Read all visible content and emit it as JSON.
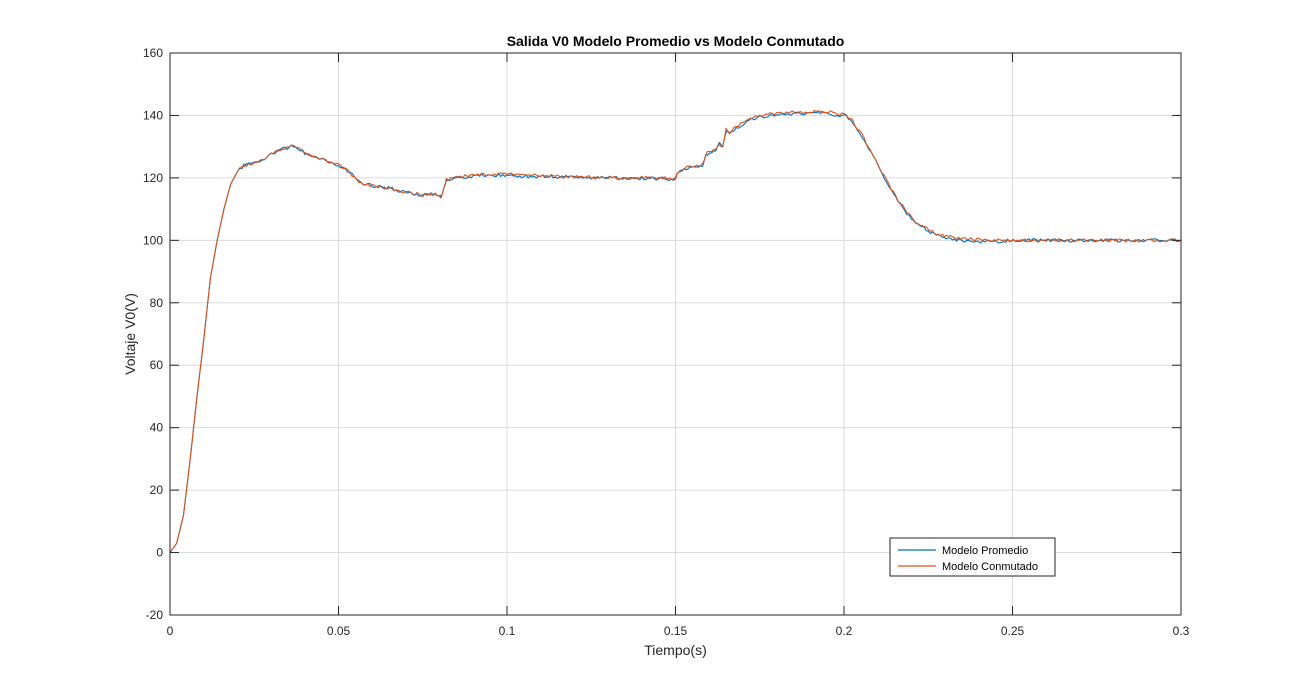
{
  "chart_data": {
    "type": "line",
    "title": "Salida V0 Modelo Promedio vs Modelo Conmutado",
    "xlabel": "Tiempo(s)",
    "ylabel": "Voltaje V0(V)",
    "xlim": [
      0,
      0.3
    ],
    "ylim": [
      -20,
      160
    ],
    "xticks": [
      0,
      0.05,
      0.1,
      0.15,
      0.2,
      0.25,
      0.3
    ],
    "xtick_labels": [
      "0",
      "0.05",
      "0.1",
      "0.15",
      "0.2",
      "0.25",
      "0.3"
    ],
    "yticks": [
      -20,
      0,
      20,
      40,
      60,
      80,
      100,
      120,
      140,
      160
    ],
    "ytick_labels": [
      "-20",
      "0",
      "20",
      "40",
      "60",
      "80",
      "100",
      "120",
      "140",
      "160"
    ],
    "grid": true,
    "legend_position": "bottom-right",
    "series": [
      {
        "name": "Modelo Promedio",
        "color": "#0072BD",
        "x": [
          0,
          0.002,
          0.004,
          0.006,
          0.008,
          0.01,
          0.012,
          0.014,
          0.016,
          0.018,
          0.02,
          0.022,
          0.024,
          0.026,
          0.028,
          0.03,
          0.032,
          0.034,
          0.036,
          0.038,
          0.04,
          0.042,
          0.045,
          0.048,
          0.05,
          0.052,
          0.054,
          0.056,
          0.058,
          0.06,
          0.063,
          0.066,
          0.069,
          0.072,
          0.075,
          0.078,
          0.08,
          0.0805,
          0.0815,
          0.082,
          0.085,
          0.09,
          0.095,
          0.1,
          0.105,
          0.11,
          0.115,
          0.12,
          0.125,
          0.13,
          0.135,
          0.14,
          0.145,
          0.15,
          0.1505,
          0.152,
          0.155,
          0.158,
          0.159,
          0.16,
          0.162,
          0.163,
          0.164,
          0.165,
          0.166,
          0.168,
          0.17,
          0.172,
          0.175,
          0.178,
          0.18,
          0.183,
          0.186,
          0.19,
          0.193,
          0.196,
          0.198,
          0.2,
          0.202,
          0.204,
          0.206,
          0.208,
          0.21,
          0.212,
          0.214,
          0.216,
          0.218,
          0.22,
          0.222,
          0.225,
          0.228,
          0.231,
          0.234,
          0.237,
          0.24,
          0.244,
          0.248,
          0.252,
          0.256,
          0.26,
          0.265,
          0.27,
          0.275,
          0.28,
          0.285,
          0.29,
          0.295,
          0.3
        ],
        "y": [
          0,
          3,
          12,
          30,
          50,
          68,
          88,
          100,
          110,
          118,
          122,
          124,
          124.5,
          125,
          126,
          127.5,
          128.5,
          129.5,
          130,
          129.5,
          128,
          127,
          126,
          124.5,
          124,
          123,
          121,
          119,
          118,
          117.5,
          117,
          116.5,
          115.5,
          115,
          114.5,
          114.8,
          114.5,
          113.5,
          118,
          119,
          120,
          120.5,
          121,
          121,
          120.5,
          120.5,
          120.3,
          120.2,
          120,
          120,
          119.8,
          119.8,
          119.8,
          119.7,
          121,
          122.5,
          123.5,
          124,
          127,
          128,
          128.5,
          131,
          129.5,
          135,
          134.5,
          136,
          137,
          138.5,
          139.5,
          140,
          140.3,
          140.5,
          140.5,
          140.6,
          140.8,
          140.5,
          140,
          140,
          138.5,
          135.5,
          132,
          128,
          124,
          120,
          116,
          112.5,
          109.5,
          107,
          105,
          103,
          101.5,
          100.5,
          100,
          99.8,
          99.5,
          99.6,
          99.8,
          100,
          100,
          100,
          100,
          100,
          100,
          100,
          100,
          100,
          100,
          100
        ]
      },
      {
        "name": "Modelo Conmutado",
        "color": "#D95319",
        "x": [
          0,
          0.002,
          0.004,
          0.006,
          0.008,
          0.01,
          0.012,
          0.014,
          0.016,
          0.018,
          0.02,
          0.022,
          0.024,
          0.026,
          0.028,
          0.03,
          0.032,
          0.034,
          0.036,
          0.038,
          0.04,
          0.042,
          0.045,
          0.048,
          0.05,
          0.052,
          0.054,
          0.056,
          0.058,
          0.06,
          0.063,
          0.066,
          0.069,
          0.072,
          0.075,
          0.078,
          0.08,
          0.0805,
          0.0815,
          0.082,
          0.085,
          0.09,
          0.095,
          0.1,
          0.105,
          0.11,
          0.115,
          0.12,
          0.125,
          0.13,
          0.135,
          0.14,
          0.145,
          0.15,
          0.1505,
          0.152,
          0.155,
          0.158,
          0.159,
          0.16,
          0.162,
          0.163,
          0.164,
          0.165,
          0.166,
          0.168,
          0.17,
          0.172,
          0.175,
          0.178,
          0.18,
          0.183,
          0.186,
          0.19,
          0.193,
          0.196,
          0.198,
          0.2,
          0.202,
          0.204,
          0.206,
          0.208,
          0.21,
          0.212,
          0.214,
          0.216,
          0.218,
          0.22,
          0.222,
          0.225,
          0.228,
          0.231,
          0.234,
          0.237,
          0.24,
          0.244,
          0.248,
          0.252,
          0.256,
          0.26,
          0.265,
          0.27,
          0.275,
          0.28,
          0.285,
          0.29,
          0.295,
          0.3
        ],
        "y": [
          0,
          3,
          12,
          30,
          50,
          68,
          88,
          100,
          110,
          118,
          122,
          124,
          124.5,
          125,
          126,
          127.5,
          128.5,
          129.5,
          130,
          129.5,
          128,
          127,
          126,
          124.5,
          124,
          123,
          121,
          119,
          118,
          117.5,
          117,
          116.5,
          115.5,
          115,
          114.5,
          114.8,
          114.5,
          113.5,
          118,
          119.5,
          120.3,
          120.8,
          121.2,
          121.2,
          120.8,
          120.7,
          120.5,
          120.3,
          120.2,
          120.1,
          120,
          120,
          120,
          120,
          121.5,
          123,
          124,
          124.5,
          127.5,
          128.5,
          129,
          130.5,
          130,
          135.5,
          135,
          136.5,
          137.5,
          139,
          140,
          140.5,
          140.8,
          141,
          141,
          141,
          141.2,
          141,
          140.5,
          140.5,
          139,
          136,
          132.5,
          128.5,
          124.5,
          120.5,
          116.5,
          113,
          110,
          107.5,
          105.5,
          103.5,
          102,
          101.3,
          100.8,
          100.5,
          100.2,
          100,
          100,
          100,
          100,
          100,
          100,
          100,
          100,
          100,
          100,
          100,
          100,
          100
        ]
      }
    ]
  }
}
